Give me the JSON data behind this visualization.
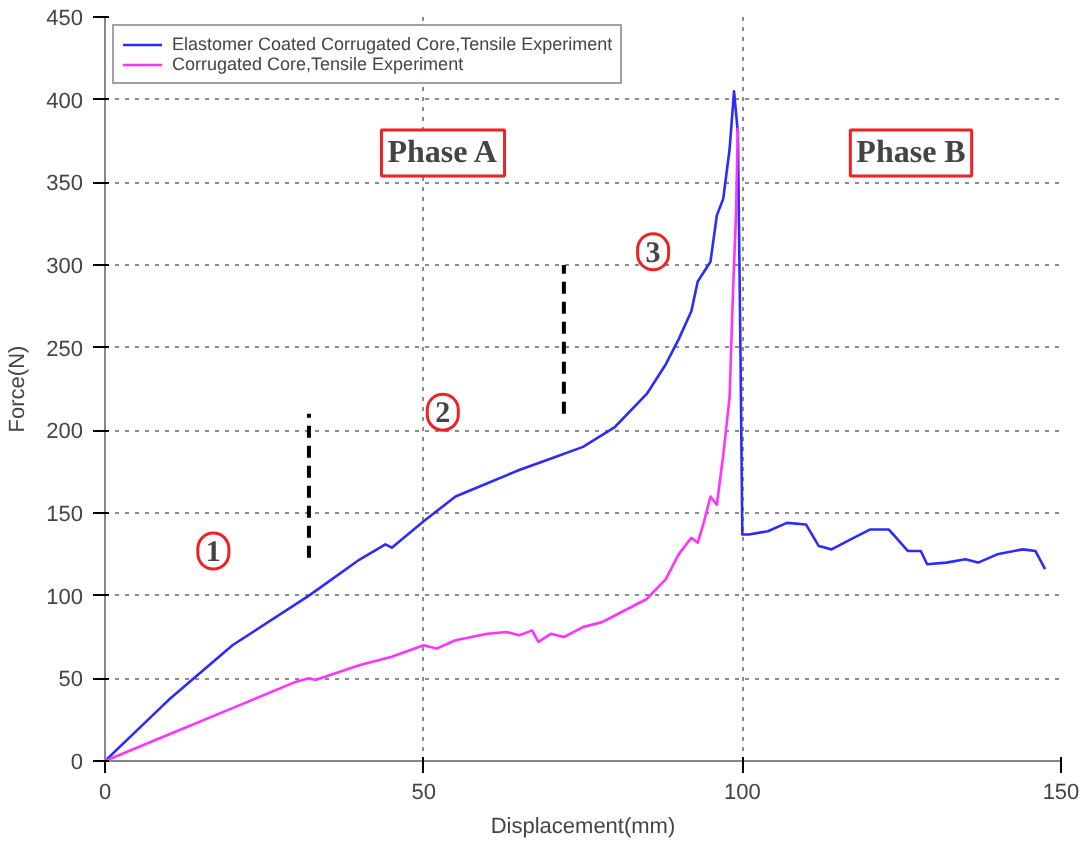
{
  "chart_data": {
    "type": "line",
    "xlabel": "Displacement(mm)",
    "ylabel": "Force(N)",
    "xlim": [
      0,
      150
    ],
    "ylim": [
      0,
      450
    ],
    "xticks": [
      0,
      50,
      100,
      150
    ],
    "yticks": [
      0,
      50,
      100,
      150,
      200,
      250,
      300,
      350,
      400,
      450
    ],
    "grid": true,
    "legend": "top left",
    "line_style": "solid",
    "marker": "none",
    "series": [
      {
        "name": "Elastomer Coated Corrugated Core,Tensile Experiment",
        "color": "#2b2bff",
        "x": [
          0,
          10,
          20,
          32,
          40,
          44,
          45,
          50,
          55,
          60,
          65,
          70,
          75,
          80,
          85,
          88,
          90,
          92,
          93,
          95,
          96,
          97,
          98,
          98.7,
          99.3,
          99.7,
          100,
          101,
          104,
          107,
          110,
          112,
          114,
          117,
          120,
          123,
          126,
          128,
          129,
          132,
          135,
          137,
          140,
          144,
          146,
          147.5
        ],
        "values": [
          0,
          37,
          70,
          100,
          122,
          131,
          129,
          145,
          160,
          168,
          176,
          183,
          190,
          202,
          222,
          240,
          255,
          272,
          290,
          302,
          330,
          340,
          370,
          405,
          380,
          250,
          137,
          137,
          139,
          144,
          143,
          130,
          128,
          134,
          140,
          140,
          127,
          127,
          119,
          120,
          122,
          120,
          125,
          128,
          127,
          116
        ]
      },
      {
        "name": "Corrugated Core,Tensile Experiment",
        "color": "#ff33ff",
        "x": [
          0,
          10,
          20,
          30,
          32,
          33,
          40,
          45,
          50,
          52,
          55,
          60,
          63,
          65,
          67,
          68,
          70,
          72,
          75,
          78,
          80,
          85,
          88,
          90,
          92,
          93,
          94,
          95,
          96,
          97,
          98,
          98.5,
          99,
          99.3
        ],
        "values": [
          0,
          16,
          32,
          48,
          50,
          49,
          58,
          63,
          70,
          68,
          73,
          77,
          78,
          76,
          79,
          72,
          77,
          75,
          81,
          84,
          88,
          98,
          110,
          125,
          135,
          132,
          145,
          160,
          155,
          185,
          220,
          280,
          330,
          383
        ]
      },
      {
        "color": "#000000",
        "line_style": "dashed",
        "x": [
          32,
          32
        ],
        "values": [
          123,
          210
        ]
      },
      {
        "color": "#000000",
        "line_style": "dashed",
        "x": [
          72,
          72
        ],
        "values": [
          210,
          300
        ]
      }
    ],
    "annotations": [
      "Phase A",
      "Phase B",
      {
        "text": "1",
        "x": 17,
        "y": 127
      },
      {
        "text": "2",
        "x": 53,
        "y": 211
      },
      {
        "text": "3",
        "x": 86,
        "y": 308
      }
    ]
  }
}
